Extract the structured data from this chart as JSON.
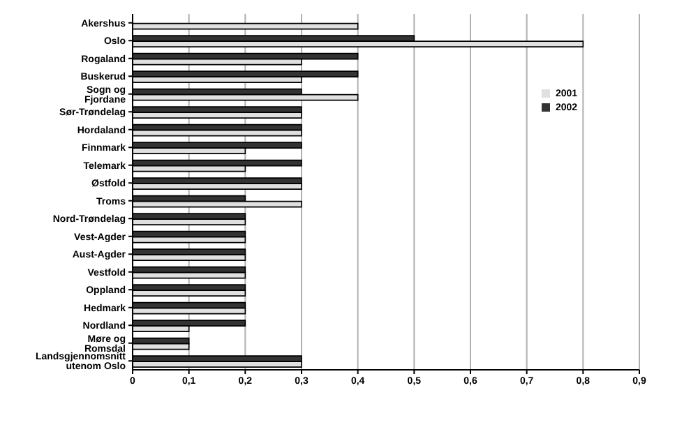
{
  "chart_data": {
    "type": "bar",
    "orientation": "horizontal",
    "categories": [
      "Akershus",
      "Oslo",
      "Rogaland",
      "Buskerud",
      "Sogn og Fjordane",
      "Sør-Trøndelag",
      "Hordaland",
      "Finnmark",
      "Telemark",
      "Østfold",
      "Troms",
      "Nord-Trøndelag",
      "Vest-Agder",
      "Aust-Agder",
      "Vestfold",
      "Oppland",
      "Hedmark",
      "Nordland",
      "Møre og Romsdal",
      "Landsgjennomsnitt utenom Oslo"
    ],
    "series": [
      {
        "name": "2002",
        "color": "#333333",
        "values": [
          0,
          0.5,
          0.4,
          0.4,
          0.3,
          0.3,
          0.3,
          0.3,
          0.3,
          0.3,
          0.2,
          0.2,
          0.2,
          0.2,
          0.2,
          0.2,
          0.2,
          0.2,
          0.1,
          0.3
        ]
      },
      {
        "name": "2001",
        "color": "#e0e0e0",
        "values": [
          0.4,
          0.8,
          0.3,
          0.3,
          0.4,
          0.3,
          0.3,
          0.2,
          0.2,
          0.3,
          0.3,
          0.2,
          0.2,
          0.2,
          0.2,
          0.2,
          0.2,
          0.1,
          0.1,
          0.3
        ]
      }
    ],
    "xlim": [
      0,
      0.9
    ],
    "xticks": [
      {
        "value": 0,
        "label": "0"
      },
      {
        "value": 0.1,
        "label": "0,1"
      },
      {
        "value": 0.2,
        "label": "0,2"
      },
      {
        "value": 0.3,
        "label": "0,3"
      },
      {
        "value": 0.4,
        "label": "0,4"
      },
      {
        "value": 0.5,
        "label": "0,5"
      },
      {
        "value": 0.6,
        "label": "0,6"
      },
      {
        "value": 0.7,
        "label": "0,7"
      },
      {
        "value": 0.8,
        "label": "0,8"
      },
      {
        "value": 0.9,
        "label": "0,9"
      }
    ],
    "grid": "x",
    "legend": "right"
  }
}
